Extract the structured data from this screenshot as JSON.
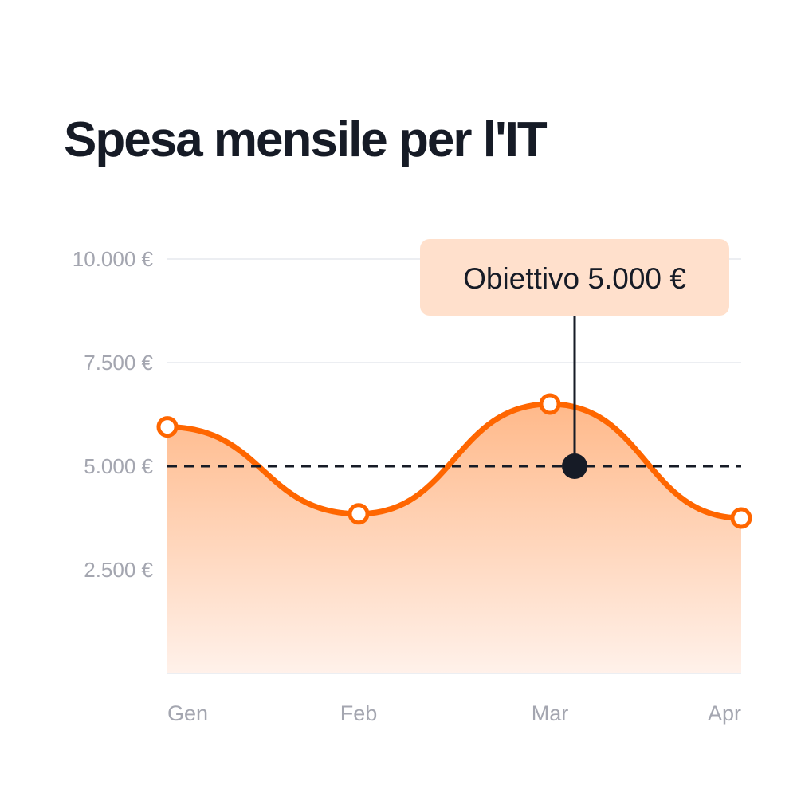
{
  "chart_data": {
    "type": "area",
    "title": "Spesa mensile per l'IT",
    "categories": [
      "Gen",
      "Feb",
      "Mar",
      "Apr"
    ],
    "values": [
      5950,
      3850,
      6500,
      3750
    ],
    "ylim": [
      0,
      10000
    ],
    "yticks": [
      {
        "value": 2500,
        "label": "2.500 €"
      },
      {
        "value": 5000,
        "label": "5.000 €"
      },
      {
        "value": 7500,
        "label": "7.500 €"
      },
      {
        "value": 10000,
        "label": "10.000 €"
      }
    ],
    "grid": true,
    "target": {
      "value": 5000,
      "label": "Obiettivo 5.000 €"
    },
    "colors": {
      "line": "#ff6600",
      "fill_top": "#ffb98a",
      "fill_bottom": "#fff1ea",
      "target_line": "#161b26",
      "callout_bg": "#ffe0cc",
      "grid": "#eceef2"
    }
  }
}
